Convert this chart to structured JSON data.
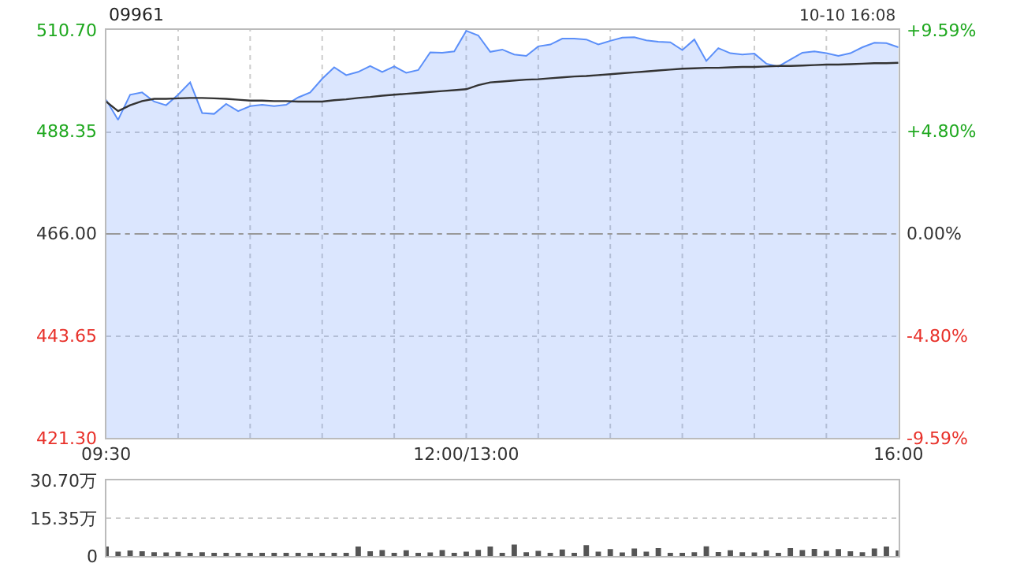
{
  "chart_data": [
    {
      "type": "line",
      "title": "09961",
      "annotations": [
        "10-10 16:08"
      ],
      "categories": [
        "09:30",
        null,
        null,
        null,
        null,
        null,
        null,
        null,
        null,
        null,
        null,
        null,
        null,
        null,
        null,
        null,
        null,
        null,
        null,
        null,
        null,
        null,
        null,
        null,
        null,
        null,
        null,
        null,
        null,
        null,
        "12:00/13:00",
        null,
        null,
        null,
        null,
        null,
        null,
        null,
        null,
        null,
        null,
        null,
        null,
        null,
        null,
        null,
        null,
        null,
        null,
        null,
        null,
        null,
        null,
        null,
        null,
        null,
        null,
        null,
        null,
        null,
        null,
        null,
        null,
        null,
        null,
        null,
        "16:00"
      ],
      "series": [
        {
          "type": "area",
          "color": "#5b8ff9",
          "values": [
            495.4,
            491.0,
            496.5,
            497.0,
            495.0,
            494.2,
            496.5,
            499.2,
            492.5,
            492.3,
            494.5,
            492.9,
            494.0,
            494.3,
            494.0,
            494.3,
            495.9,
            497.0,
            500.0,
            502.5,
            500.8,
            501.5,
            502.8,
            501.5,
            502.7,
            501.3,
            501.9,
            505.8,
            505.7,
            506.0,
            510.5,
            509.5,
            505.9,
            506.4,
            505.3,
            505.0,
            507.1,
            507.5,
            508.8,
            508.8,
            508.6,
            507.5,
            508.3,
            509.0,
            509.1,
            508.4,
            508.1,
            508.0,
            506.3,
            508.6,
            503.9,
            506.7,
            505.6,
            505.3,
            505.5,
            503.3,
            502.7,
            504.2,
            505.7,
            506.0,
            505.6,
            505.0,
            505.6,
            506.9,
            507.9,
            507.8,
            506.9
          ]
        },
        {
          "type": "line",
          "color": "#333333",
          "values": [
            495.0,
            492.9,
            494.2,
            495.1,
            495.6,
            495.6,
            495.7,
            495.8,
            495.8,
            495.7,
            495.6,
            495.4,
            495.2,
            495.2,
            495.1,
            495.1,
            495.0,
            495.0,
            495.0,
            495.3,
            495.5,
            495.8,
            496.0,
            496.3,
            496.5,
            496.7,
            496.9,
            497.1,
            497.3,
            497.5,
            497.7,
            498.6,
            499.2,
            499.4,
            499.6,
            499.8,
            499.9,
            500.1,
            500.3,
            500.5,
            500.6,
            500.8,
            501.0,
            501.2,
            501.4,
            501.6,
            501.8,
            502.0,
            502.2,
            502.3,
            502.4,
            502.4,
            502.5,
            502.6,
            502.6,
            502.7,
            502.8,
            502.8,
            502.9,
            503.0,
            503.1,
            503.1,
            503.2,
            503.3,
            503.4,
            503.4,
            503.5
          ]
        }
      ],
      "ylim": [
        421.3,
        510.7
      ],
      "yticks": [
        {
          "value": 421.3,
          "label": "421.30"
        },
        {
          "value": 443.65,
          "label": "443.65"
        },
        {
          "value": 466,
          "label": "466.00"
        },
        {
          "value": 488.35,
          "label": "488.35"
        },
        {
          "value": 510.7,
          "label": "510.70"
        }
      ],
      "y2lim": [
        -9.59,
        9.59
      ],
      "y2ticks": [
        {
          "value": -9.59,
          "label": "-9.59%"
        },
        {
          "value": -4.8,
          "label": "-4.80%"
        },
        {
          "value": 0,
          "label": "0.00%"
        },
        {
          "value": 4.8,
          "label": "+4.80%"
        },
        {
          "value": 9.59,
          "label": "+9.59%"
        }
      ],
      "ref_lines": [
        {
          "axis": "y",
          "value": 466,
          "color": "#999999",
          "line_style": "dashed"
        }
      ],
      "grid": true,
      "marker": "none"
    },
    {
      "type": "bar",
      "color": "#555555",
      "categories": [
        null,
        null,
        null,
        null,
        null,
        null,
        null,
        null,
        null,
        null,
        null,
        null,
        null,
        null,
        null,
        null,
        null,
        null,
        null,
        null,
        null,
        null,
        null,
        null,
        null,
        null,
        null,
        null,
        null,
        null,
        null,
        null,
        null,
        null,
        null,
        null,
        null,
        null,
        null,
        null,
        null,
        null,
        null,
        null,
        null,
        null,
        null,
        null,
        null,
        null,
        null,
        null,
        null,
        null,
        null,
        null,
        null,
        null,
        null,
        null,
        null,
        null,
        null,
        null,
        null,
        null,
        null
      ],
      "values": [
        3.8,
        1.8,
        2.2,
        1.9,
        1.5,
        1.4,
        1.7,
        1.2,
        1.5,
        1.3,
        1.2,
        1.3,
        1.0,
        1.1,
        0.8,
        0.9,
        1.0,
        0.9,
        1.0,
        1.1,
        1.0,
        3.8,
        1.9,
        2.4,
        1.1,
        2.3,
        0.9,
        1.4,
        2.4,
        1.0,
        1.8,
        2.5,
        3.8,
        1.2,
        4.6,
        1.5,
        2.1,
        1.0,
        2.6,
        1.2,
        4.4,
        1.8,
        2.8,
        1.4,
        3.0,
        1.8,
        3.2,
        1.3,
        1.1,
        1.5,
        3.9,
        1.6,
        2.3,
        1.5,
        1.4,
        2.2,
        1.0,
        3.2,
        2.4,
        2.9,
        2.1,
        2.8,
        1.9,
        1.5,
        3.0,
        3.8,
        2.2
      ],
      "ylim": [
        0,
        30.7
      ],
      "yticks": [
        0,
        {
          "value": 15.35,
          "label": "15.35万"
        },
        {
          "value": 30.7,
          "label": "30.70万"
        }
      ],
      "grid": "y"
    }
  ]
}
